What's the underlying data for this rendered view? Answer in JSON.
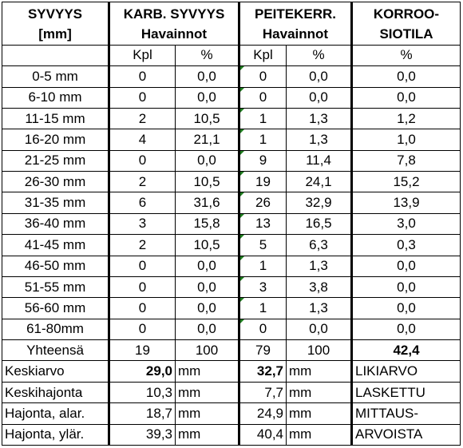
{
  "header": {
    "col1_line1": "SYVYYS",
    "col1_line2": "[mm]",
    "karb_line1": "KARB. SYVYYS",
    "karb_line2": "Havainnot",
    "peite_line1": "PEITEKERR.",
    "peite_line2": "Havainnot",
    "korr_line1": "KORROO-",
    "korr_line2": "SIOTILA"
  },
  "units": {
    "karb_kpl": "Kpl",
    "karb_pct": "%",
    "peite_kpl": "Kpl",
    "peite_pct": "%",
    "korr_pct": "%"
  },
  "rows": [
    {
      "depth": "0-5 mm",
      "karb_kpl": "0",
      "karb_pct": "0,0",
      "peite_kpl": "0",
      "peite_pct": "0,0",
      "korr_pct": "0,0"
    },
    {
      "depth": "6-10 mm",
      "karb_kpl": "0",
      "karb_pct": "0,0",
      "peite_kpl": "0",
      "peite_pct": "0,0",
      "korr_pct": "0,0"
    },
    {
      "depth": "11-15 mm",
      "karb_kpl": "2",
      "karb_pct": "10,5",
      "peite_kpl": "1",
      "peite_pct": "1,3",
      "korr_pct": "1,2"
    },
    {
      "depth": "16-20 mm",
      "karb_kpl": "4",
      "karb_pct": "21,1",
      "peite_kpl": "1",
      "peite_pct": "1,3",
      "korr_pct": "1,0"
    },
    {
      "depth": "21-25 mm",
      "karb_kpl": "0",
      "karb_pct": "0,0",
      "peite_kpl": "9",
      "peite_pct": "11,4",
      "korr_pct": "7,8"
    },
    {
      "depth": "26-30 mm",
      "karb_kpl": "2",
      "karb_pct": "10,5",
      "peite_kpl": "19",
      "peite_pct": "24,1",
      "korr_pct": "15,2"
    },
    {
      "depth": "31-35 mm",
      "karb_kpl": "6",
      "karb_pct": "31,6",
      "peite_kpl": "26",
      "peite_pct": "32,9",
      "korr_pct": "13,9"
    },
    {
      "depth": "36-40 mm",
      "karb_kpl": "3",
      "karb_pct": "15,8",
      "peite_kpl": "13",
      "peite_pct": "16,5",
      "korr_pct": "3,0"
    },
    {
      "depth": "41-45 mm",
      "karb_kpl": "2",
      "karb_pct": "10,5",
      "peite_kpl": "5",
      "peite_pct": "6,3",
      "korr_pct": "0,3"
    },
    {
      "depth": "46-50 mm",
      "karb_kpl": "0",
      "karb_pct": "0,0",
      "peite_kpl": "1",
      "peite_pct": "1,3",
      "korr_pct": "0,0"
    },
    {
      "depth": "51-55 mm",
      "karb_kpl": "0",
      "karb_pct": "0,0",
      "peite_kpl": "3",
      "peite_pct": "3,8",
      "korr_pct": "0,0"
    },
    {
      "depth": "56-60 mm",
      "karb_kpl": "0",
      "karb_pct": "0,0",
      "peite_kpl": "1",
      "peite_pct": "1,3",
      "korr_pct": "0,0"
    },
    {
      "depth": "61-80mm",
      "karb_kpl": "0",
      "karb_pct": "0,0",
      "peite_kpl": "0",
      "peite_pct": "0,0",
      "korr_pct": "0,0"
    }
  ],
  "total": {
    "label": "Yhteensä",
    "karb_kpl": "19",
    "karb_pct": "100",
    "peite_kpl": "79",
    "peite_pct": "100",
    "korr_pct": "42,4"
  },
  "stats": [
    {
      "label": "Keskiarvo",
      "karb": "29,0",
      "karb_unit": "mm",
      "peite": "32,7",
      "peite_unit": "mm",
      "note": "LIKIARVO"
    },
    {
      "label": "Keskihajonta",
      "karb": "10,3",
      "karb_unit": "mm",
      "peite": "7,7",
      "peite_unit": "mm",
      "note": "LASKETTU"
    },
    {
      "label": "Hajonta, alar.",
      "karb": "18,7",
      "karb_unit": "mm",
      "peite": "24,9",
      "peite_unit": "mm",
      "note": "MITTAUS-"
    },
    {
      "label": "Hajonta, ylär.",
      "karb": "39,3",
      "karb_unit": "mm",
      "peite": "40,4",
      "peite_unit": "mm",
      "note": "ARVOISTA"
    }
  ],
  "tick_color": "#1e7e1e"
}
